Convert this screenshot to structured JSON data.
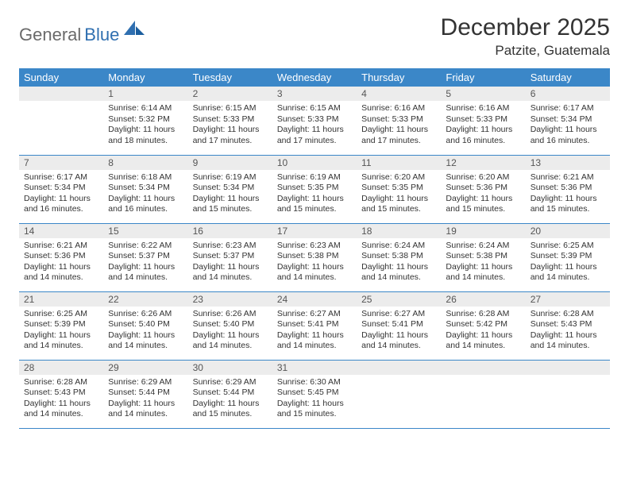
{
  "logo": {
    "gray": "General",
    "blue": "Blue"
  },
  "header": {
    "title": "December 2025",
    "location": "Patzite, Guatemala"
  },
  "weekdays": [
    "Sunday",
    "Monday",
    "Tuesday",
    "Wednesday",
    "Thursday",
    "Friday",
    "Saturday"
  ],
  "colors": {
    "header_bg": "#3b87c8",
    "header_fg": "#ffffff",
    "daynum_bg": "#ececec",
    "text": "#333333",
    "logo_gray": "#6a6a6a",
    "logo_blue": "#2f6fb0"
  },
  "start_offset": 1,
  "days": [
    {
      "n": 1,
      "sunrise": "6:14 AM",
      "sunset": "5:32 PM",
      "daylight": "11 hours and 18 minutes."
    },
    {
      "n": 2,
      "sunrise": "6:15 AM",
      "sunset": "5:33 PM",
      "daylight": "11 hours and 17 minutes."
    },
    {
      "n": 3,
      "sunrise": "6:15 AM",
      "sunset": "5:33 PM",
      "daylight": "11 hours and 17 minutes."
    },
    {
      "n": 4,
      "sunrise": "6:16 AM",
      "sunset": "5:33 PM",
      "daylight": "11 hours and 17 minutes."
    },
    {
      "n": 5,
      "sunrise": "6:16 AM",
      "sunset": "5:33 PM",
      "daylight": "11 hours and 16 minutes."
    },
    {
      "n": 6,
      "sunrise": "6:17 AM",
      "sunset": "5:34 PM",
      "daylight": "11 hours and 16 minutes."
    },
    {
      "n": 7,
      "sunrise": "6:17 AM",
      "sunset": "5:34 PM",
      "daylight": "11 hours and 16 minutes."
    },
    {
      "n": 8,
      "sunrise": "6:18 AM",
      "sunset": "5:34 PM",
      "daylight": "11 hours and 16 minutes."
    },
    {
      "n": 9,
      "sunrise": "6:19 AM",
      "sunset": "5:34 PM",
      "daylight": "11 hours and 15 minutes."
    },
    {
      "n": 10,
      "sunrise": "6:19 AM",
      "sunset": "5:35 PM",
      "daylight": "11 hours and 15 minutes."
    },
    {
      "n": 11,
      "sunrise": "6:20 AM",
      "sunset": "5:35 PM",
      "daylight": "11 hours and 15 minutes."
    },
    {
      "n": 12,
      "sunrise": "6:20 AM",
      "sunset": "5:36 PM",
      "daylight": "11 hours and 15 minutes."
    },
    {
      "n": 13,
      "sunrise": "6:21 AM",
      "sunset": "5:36 PM",
      "daylight": "11 hours and 15 minutes."
    },
    {
      "n": 14,
      "sunrise": "6:21 AM",
      "sunset": "5:36 PM",
      "daylight": "11 hours and 14 minutes."
    },
    {
      "n": 15,
      "sunrise": "6:22 AM",
      "sunset": "5:37 PM",
      "daylight": "11 hours and 14 minutes."
    },
    {
      "n": 16,
      "sunrise": "6:23 AM",
      "sunset": "5:37 PM",
      "daylight": "11 hours and 14 minutes."
    },
    {
      "n": 17,
      "sunrise": "6:23 AM",
      "sunset": "5:38 PM",
      "daylight": "11 hours and 14 minutes."
    },
    {
      "n": 18,
      "sunrise": "6:24 AM",
      "sunset": "5:38 PM",
      "daylight": "11 hours and 14 minutes."
    },
    {
      "n": 19,
      "sunrise": "6:24 AM",
      "sunset": "5:38 PM",
      "daylight": "11 hours and 14 minutes."
    },
    {
      "n": 20,
      "sunrise": "6:25 AM",
      "sunset": "5:39 PM",
      "daylight": "11 hours and 14 minutes."
    },
    {
      "n": 21,
      "sunrise": "6:25 AM",
      "sunset": "5:39 PM",
      "daylight": "11 hours and 14 minutes."
    },
    {
      "n": 22,
      "sunrise": "6:26 AM",
      "sunset": "5:40 PM",
      "daylight": "11 hours and 14 minutes."
    },
    {
      "n": 23,
      "sunrise": "6:26 AM",
      "sunset": "5:40 PM",
      "daylight": "11 hours and 14 minutes."
    },
    {
      "n": 24,
      "sunrise": "6:27 AM",
      "sunset": "5:41 PM",
      "daylight": "11 hours and 14 minutes."
    },
    {
      "n": 25,
      "sunrise": "6:27 AM",
      "sunset": "5:41 PM",
      "daylight": "11 hours and 14 minutes."
    },
    {
      "n": 26,
      "sunrise": "6:28 AM",
      "sunset": "5:42 PM",
      "daylight": "11 hours and 14 minutes."
    },
    {
      "n": 27,
      "sunrise": "6:28 AM",
      "sunset": "5:43 PM",
      "daylight": "11 hours and 14 minutes."
    },
    {
      "n": 28,
      "sunrise": "6:28 AM",
      "sunset": "5:43 PM",
      "daylight": "11 hours and 14 minutes."
    },
    {
      "n": 29,
      "sunrise": "6:29 AM",
      "sunset": "5:44 PM",
      "daylight": "11 hours and 14 minutes."
    },
    {
      "n": 30,
      "sunrise": "6:29 AM",
      "sunset": "5:44 PM",
      "daylight": "11 hours and 15 minutes."
    },
    {
      "n": 31,
      "sunrise": "6:30 AM",
      "sunset": "5:45 PM",
      "daylight": "11 hours and 15 minutes."
    }
  ],
  "labels": {
    "sunrise": "Sunrise: ",
    "sunset": "Sunset: ",
    "daylight": "Daylight: "
  }
}
